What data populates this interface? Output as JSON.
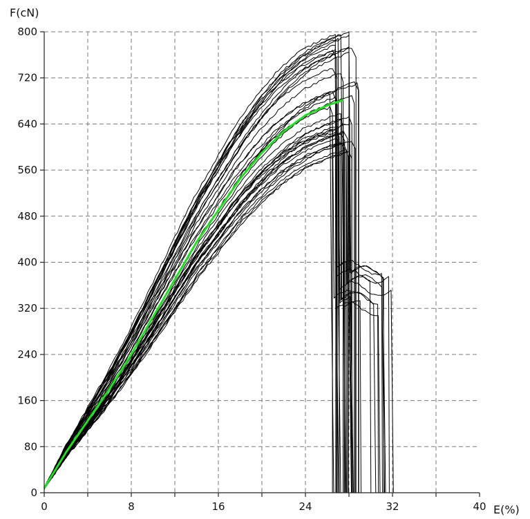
{
  "chart_data": {
    "type": "line",
    "title": "",
    "xlabel": "E(%)",
    "ylabel": "F(cN)",
    "xlim": [
      0,
      40
    ],
    "ylim": [
      0,
      800
    ],
    "x_ticks": [
      0,
      8,
      16,
      24,
      32,
      40
    ],
    "x_minor_grid_step": 4,
    "y_ticks": [
      0,
      80,
      160,
      240,
      320,
      400,
      480,
      560,
      640,
      720,
      800
    ],
    "grid": "dashed",
    "legend": "none",
    "colors": {
      "specimens": "#000000",
      "mean": "#22dd22"
    },
    "specimen_curves": {
      "count": 40,
      "start_F": 8,
      "break_E_range": [
        26.5,
        32.5
      ],
      "peak_F_range": [
        590,
        800
      ],
      "post_break_shoulder_F_range": [
        310,
        410
      ]
    },
    "series": [
      {
        "color": "#22dd22",
        "x": [
          0,
          2,
          4,
          6,
          8,
          10,
          12,
          14,
          16,
          18,
          20,
          22,
          24,
          26,
          27.5
        ],
        "y": [
          8,
          70,
          125,
          180,
          240,
          305,
          370,
          435,
          490,
          545,
          590,
          627,
          655,
          672,
          682
        ]
      }
    ]
  }
}
